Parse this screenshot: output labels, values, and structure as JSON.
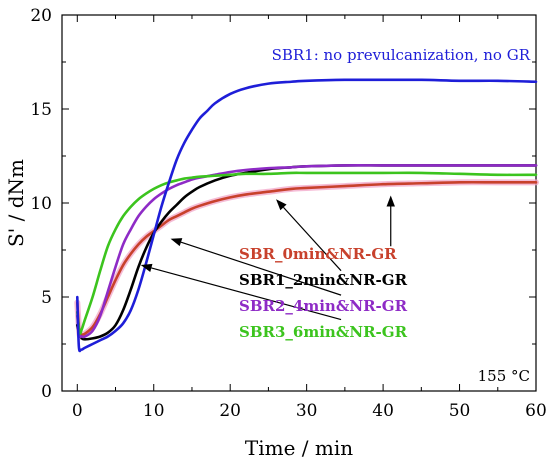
{
  "chart_data": {
    "type": "line",
    "xlabel": "Time / min",
    "ylabel": "S' / dNm",
    "xlim": [
      -2,
      60
    ],
    "ylim": [
      0,
      20
    ],
    "xticks": [
      "0",
      "10",
      "20",
      "30",
      "40",
      "50",
      "60"
    ],
    "yticks": [
      "0",
      "5",
      "10",
      "15",
      "20"
    ],
    "annotations": {
      "blue_label": "SBR1: no prevulcanization, no GR",
      "temperature": "155 °C"
    },
    "series": [
      {
        "name": "SBR_0min&NR-GR",
        "color": "#c8412c",
        "x": [
          0,
          0.3,
          0.6,
          1,
          2,
          3,
          4,
          5,
          6,
          7,
          8,
          9,
          10,
          11,
          12,
          13,
          14,
          15,
          16,
          18,
          20,
          22,
          25,
          28,
          30,
          35,
          40,
          45,
          50,
          55,
          60
        ],
        "y": [
          4.7,
          3.0,
          3.0,
          3.05,
          3.4,
          4.1,
          5.0,
          5.9,
          6.7,
          7.3,
          7.8,
          8.2,
          8.5,
          8.8,
          9.1,
          9.3,
          9.5,
          9.7,
          9.85,
          10.1,
          10.3,
          10.45,
          10.6,
          10.75,
          10.8,
          10.9,
          11.0,
          11.05,
          11.1,
          11.1,
          11.1
        ]
      },
      {
        "name": "SBR1_2min&NR-GR",
        "color": "#000000",
        "x": [
          0,
          0.3,
          0.6,
          1,
          2,
          3,
          4,
          5,
          6,
          7,
          8,
          9,
          10,
          11,
          12,
          13,
          14,
          15,
          16,
          18,
          20,
          22,
          25,
          28,
          30,
          35,
          40,
          45,
          50,
          55,
          60
        ],
        "y": [
          3.5,
          3.0,
          2.8,
          2.75,
          2.8,
          2.9,
          3.1,
          3.5,
          4.3,
          5.4,
          6.6,
          7.6,
          8.4,
          9.0,
          9.5,
          9.9,
          10.3,
          10.6,
          10.85,
          11.2,
          11.45,
          11.6,
          11.8,
          11.9,
          11.95,
          12.0,
          12.0,
          12.0,
          12.0,
          12.0,
          12.0
        ]
      },
      {
        "name": "SBR2_4min&NR-GR",
        "color": "#8e2bc6",
        "x": [
          0,
          0.3,
          0.6,
          1,
          2,
          3,
          4,
          5,
          6,
          7,
          8,
          9,
          10,
          11,
          12,
          13,
          14,
          15,
          16,
          18,
          20,
          22,
          25,
          28,
          30,
          35,
          40,
          45,
          50,
          55,
          60
        ],
        "y": [
          4.0,
          3.0,
          2.9,
          2.9,
          3.2,
          4.0,
          5.3,
          6.6,
          7.8,
          8.6,
          9.3,
          9.8,
          10.2,
          10.5,
          10.75,
          10.95,
          11.1,
          11.25,
          11.35,
          11.5,
          11.65,
          11.75,
          11.85,
          11.9,
          11.95,
          12.0,
          12.0,
          12.0,
          12.0,
          12.0,
          12.0
        ]
      },
      {
        "name": "SBR3_6min&NR-GR",
        "color": "#3cc41e",
        "x": [
          0,
          0.3,
          0.6,
          1,
          2,
          3,
          4,
          5,
          6,
          7,
          8,
          9,
          10,
          11,
          12,
          13,
          14,
          15,
          16,
          18,
          20,
          22,
          25,
          28,
          30,
          35,
          40,
          45,
          50,
          55,
          60
        ],
        "y": [
          4.2,
          3.1,
          3.3,
          3.8,
          5.0,
          6.4,
          7.7,
          8.6,
          9.3,
          9.8,
          10.2,
          10.5,
          10.75,
          10.95,
          11.1,
          11.2,
          11.3,
          11.35,
          11.4,
          11.45,
          11.5,
          11.55,
          11.55,
          11.6,
          11.6,
          11.6,
          11.6,
          11.6,
          11.55,
          11.5,
          11.5
        ]
      },
      {
        "name": "SBR1: no prevulcanization, no GR",
        "color": "#1e1ed8",
        "x": [
          0,
          0.2,
          0.5,
          1,
          2,
          3,
          4,
          5,
          6,
          7,
          8,
          9,
          10,
          11,
          12,
          13,
          14,
          15,
          16,
          17,
          18,
          20,
          22,
          25,
          28,
          30,
          35,
          40,
          45,
          50,
          55,
          60
        ],
        "y": [
          5.0,
          2.4,
          2.2,
          2.3,
          2.5,
          2.7,
          2.9,
          3.2,
          3.6,
          4.3,
          5.4,
          6.8,
          8.3,
          9.8,
          11.1,
          12.3,
          13.2,
          13.9,
          14.5,
          14.9,
          15.3,
          15.8,
          16.1,
          16.35,
          16.45,
          16.5,
          16.55,
          16.55,
          16.55,
          16.5,
          16.5,
          16.45
        ]
      }
    ],
    "legend": [
      {
        "label": "SBR_0min&NR-GR",
        "color": "#c8412c"
      },
      {
        "label": "SBR1_2min&NR-GR",
        "color": "#000000"
      },
      {
        "label": "SBR2_4min&NR-GR",
        "color": "#8e2bc6"
      },
      {
        "label": "SBR3_6min&NR-GR",
        "color": "#3cc41e"
      }
    ]
  }
}
